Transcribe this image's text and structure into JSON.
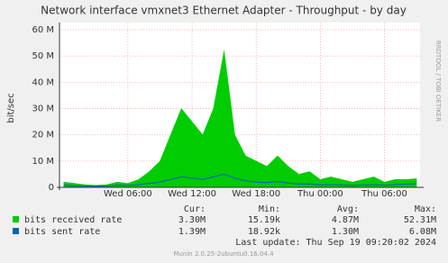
{
  "chart_data": {
    "type": "area",
    "title": "Network interface vmxnet3 Ethernet Adapter - Throughput - by day",
    "y_label": "bit/sec",
    "watermark": "RRDTOOL / TOBI OETIKER",
    "x": [
      0,
      1,
      2,
      3,
      4,
      5,
      6,
      7,
      8,
      9,
      10,
      11,
      12,
      13,
      14,
      15,
      16,
      17,
      18,
      19,
      20,
      21,
      22,
      23,
      24,
      25,
      26,
      27,
      28,
      29,
      30,
      31,
      32,
      33
    ],
    "xlim": [
      -0.4,
      33.33
    ],
    "xticks": [
      {
        "value": 6,
        "label": "Wed 06:00"
      },
      {
        "value": 12,
        "label": "Wed 12:00"
      },
      {
        "value": 18,
        "label": "Wed 18:00"
      },
      {
        "value": 24,
        "label": "Thu 00:00"
      },
      {
        "value": 30,
        "label": "Thu 06:00"
      }
    ],
    "ylim": [
      0,
      63000000
    ],
    "yticks": [
      0,
      {
        "value": 10000000,
        "label": "10 M"
      },
      {
        "value": 20000000,
        "label": "20 M"
      },
      {
        "value": 30000000,
        "label": "30 M"
      },
      {
        "value": 40000000,
        "label": "40 M"
      },
      {
        "value": 50000000,
        "label": "50 M"
      },
      {
        "value": 60000000,
        "label": "60 M"
      }
    ],
    "grid": true,
    "legend_columns": [
      "Cur:",
      "Min:",
      "Avg:",
      "Max:"
    ],
    "series": [
      {
        "name": "bits received rate",
        "color": "#00cc00",
        "values": [
          2000000.0,
          1500000.0,
          1000000.0,
          800000.0,
          1000000.0,
          2000000.0,
          1500000.0,
          3000000.0,
          6000000.0,
          10000000.0,
          20000000.0,
          30000000.0,
          25000000.0,
          20000000.0,
          30000000.0,
          52000000.0,
          20000000.0,
          12000000.0,
          10000000.0,
          8000000.0,
          12000000.0,
          8000000.0,
          5000000.0,
          6000000.0,
          3000000.0,
          4000000.0,
          3000000.0,
          2000000.0,
          3000000.0,
          4000000.0,
          2000000.0,
          3000000.0,
          3000000.0,
          3300000.0
        ],
        "stats": [
          "3.30M",
          "15.19k",
          "4.87M",
          "52.31M"
        ]
      },
      {
        "name": "bits sent rate",
        "color": "#0066b3",
        "values": [
          800000.0,
          600000.0,
          500000.0,
          400000.0,
          500000.0,
          800000.0,
          700000.0,
          1000000.0,
          1500000.0,
          2000000.0,
          3000000.0,
          4000000.0,
          3500000.0,
          3000000.0,
          4000000.0,
          5000000.0,
          3500000.0,
          2500000.0,
          2000000.0,
          1800000.0,
          2200000.0,
          1600000.0,
          1200000.0,
          1300000.0,
          900000.0,
          1000000.0,
          900000.0,
          700000.0,
          900000.0,
          1000000.0,
          800000.0,
          1000000.0,
          1200000.0,
          1390000.0
        ],
        "stats": [
          "1.39M",
          "18.92k",
          "1.30M",
          "6.08M"
        ]
      }
    ],
    "last_update": "Last update:  Thu Sep 19 09:20:02 2024",
    "footer": "Munin 2.0.25-2ubuntu0.16.04.4"
  }
}
